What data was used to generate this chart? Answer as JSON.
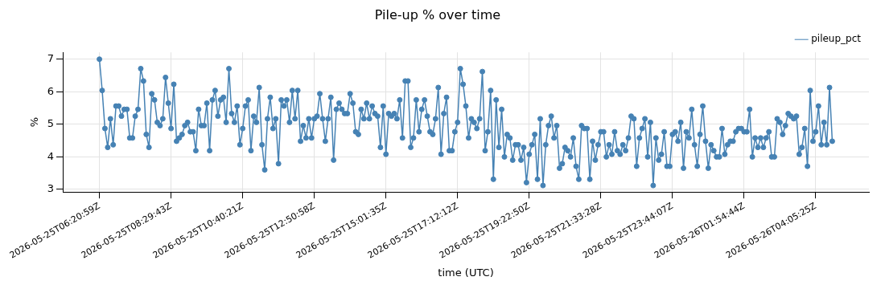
{
  "chart_data": {
    "type": "line",
    "title": "Pile-up % over time",
    "xlabel": "time (UTC)",
    "ylabel": "%",
    "categories": [
      "2026-05-25T06:20:59Z",
      null,
      null,
      null,
      null,
      null,
      null,
      null,
      null,
      null,
      null,
      null,
      null,
      null,
      null,
      null,
      null,
      null,
      null,
      null,
      null,
      null,
      null,
      null,
      null,
      null,
      "2026-05-25T08:29:43Z",
      null,
      null,
      null,
      null,
      null,
      null,
      null,
      null,
      null,
      null,
      null,
      null,
      null,
      null,
      null,
      null,
      null,
      null,
      null,
      null,
      null,
      null,
      null,
      null,
      null,
      "2026-05-25T10:40:21Z",
      null,
      null,
      null,
      null,
      null,
      null,
      null,
      null,
      null,
      null,
      null,
      null,
      null,
      null,
      null,
      null,
      null,
      null,
      null,
      null,
      null,
      null,
      null,
      null,
      null,
      "2026-05-25T12:50:58Z",
      null,
      null,
      null,
      null,
      null,
      null,
      null,
      null,
      null,
      null,
      null,
      null,
      null,
      null,
      null,
      null,
      null,
      null,
      null,
      null,
      null,
      null,
      null,
      null,
      null,
      "2026-05-25T15:01:35Z",
      null,
      null,
      null,
      null,
      null,
      null,
      null,
      null,
      null,
      null,
      null,
      null,
      null,
      null,
      null,
      null,
      null,
      null,
      null,
      null,
      null,
      null,
      null,
      null,
      null,
      "2026-05-25T17:12:12Z",
      null,
      null,
      null,
      null,
      null,
      null,
      null,
      null,
      null,
      null,
      null,
      null,
      null,
      null,
      null,
      null,
      null,
      null,
      null,
      null,
      null,
      null,
      null,
      null,
      null,
      "2026-05-25T19:22:50Z",
      null,
      null,
      null,
      null,
      null,
      null,
      null,
      null,
      null,
      null,
      null,
      null,
      null,
      null,
      null,
      null,
      null,
      null,
      null,
      null,
      null,
      null,
      null,
      null,
      null,
      "2026-05-25T21:33:28Z",
      null,
      null,
      null,
      null,
      null,
      null,
      null,
      null,
      null,
      null,
      null,
      null,
      null,
      null,
      null,
      null,
      null,
      null,
      null,
      null,
      null,
      null,
      null,
      null,
      null,
      "2026-05-25T23:44:07Z",
      null,
      null,
      null,
      null,
      null,
      null,
      null,
      null,
      null,
      null,
      null,
      null,
      null,
      null,
      null,
      null,
      null,
      null,
      null,
      null,
      null,
      null,
      null,
      null,
      null,
      "2026-05-26T01:54:44Z",
      null,
      null,
      null,
      null,
      null,
      null,
      null,
      null,
      null,
      null,
      null,
      null,
      null,
      null,
      null,
      null,
      null,
      null,
      null,
      null,
      null,
      null,
      null,
      null,
      null,
      "2026-05-26T04:05:25Z",
      null,
      null,
      null,
      null,
      null,
      null
    ],
    "series": [
      {
        "name": "pileup_pct",
        "color": "#4682b4",
        "values": [
          7.0,
          6.04,
          4.87,
          4.29,
          5.17,
          4.37,
          5.56,
          5.56,
          5.25,
          5.46,
          5.46,
          4.58,
          4.58,
          5.25,
          5.46,
          6.71,
          6.33,
          4.69,
          4.29,
          5.94,
          5.75,
          5.06,
          4.96,
          5.17,
          6.44,
          5.65,
          4.87,
          6.23,
          4.48,
          4.58,
          4.69,
          4.96,
          5.06,
          4.77,
          4.77,
          4.19,
          5.46,
          4.96,
          4.96,
          5.65,
          4.19,
          5.75,
          6.04,
          5.25,
          5.75,
          5.83,
          5.06,
          6.71,
          5.33,
          5.06,
          5.56,
          4.37,
          4.87,
          5.56,
          5.75,
          4.19,
          5.25,
          5.06,
          6.13,
          4.37,
          3.6,
          5.17,
          5.83,
          4.87,
          5.17,
          3.79,
          5.75,
          5.56,
          5.75,
          5.06,
          6.04,
          5.17,
          6.04,
          4.48,
          4.96,
          4.58,
          5.17,
          4.58,
          5.17,
          5.25,
          5.94,
          5.17,
          4.48,
          5.17,
          5.83,
          3.9,
          5.46,
          5.65,
          5.46,
          5.33,
          5.33,
          5.94,
          5.65,
          4.77,
          4.69,
          5.46,
          5.17,
          5.65,
          5.17,
          5.56,
          5.33,
          5.25,
          4.29,
          5.56,
          4.08,
          5.33,
          5.25,
          5.33,
          5.17,
          5.75,
          4.58,
          6.33,
          6.33,
          4.29,
          4.58,
          5.75,
          4.77,
          5.46,
          5.75,
          5.25,
          4.77,
          4.69,
          5.17,
          6.13,
          4.08,
          5.33,
          5.83,
          4.19,
          4.19,
          4.77,
          5.06,
          6.71,
          6.23,
          5.56,
          4.58,
          5.17,
          5.06,
          4.87,
          5.17,
          6.62,
          4.19,
          4.77,
          6.04,
          3.31,
          5.75,
          4.29,
          5.46,
          4.0,
          4.69,
          4.58,
          3.9,
          4.37,
          4.37,
          3.9,
          4.29,
          3.21,
          4.08,
          4.37,
          4.69,
          3.31,
          5.17,
          3.12,
          4.37,
          4.96,
          5.25,
          4.58,
          4.96,
          3.65,
          3.79,
          4.29,
          4.19,
          4.0,
          4.58,
          3.71,
          3.31,
          4.96,
          4.87,
          4.87,
          3.31,
          4.48,
          3.9,
          4.37,
          4.77,
          4.77,
          4.0,
          4.37,
          4.08,
          4.77,
          4.19,
          4.08,
          4.37,
          4.19,
          4.58,
          5.25,
          5.17,
          3.71,
          4.58,
          4.87,
          5.17,
          4.0,
          5.06,
          3.12,
          4.58,
          3.9,
          4.08,
          4.77,
          3.71,
          3.71,
          4.69,
          4.77,
          4.48,
          5.06,
          3.65,
          4.77,
          4.58,
          5.46,
          4.37,
          3.71,
          4.69,
          5.56,
          4.48,
          3.65,
          4.37,
          4.19,
          4.0,
          4.0,
          4.87,
          4.08,
          4.37,
          4.48,
          4.48,
          4.77,
          4.87,
          4.87,
          4.77,
          4.77,
          5.46,
          4.0,
          4.58,
          4.29,
          4.58,
          4.29,
          4.58,
          4.77,
          4.0,
          4.0,
          5.17,
          5.06,
          4.69,
          4.96,
          5.33,
          5.25,
          5.17,
          5.25,
          4.08,
          4.29,
          4.87,
          3.71,
          6.04,
          4.48,
          4.77,
          5.56,
          4.37,
          5.06,
          4.37,
          6.13,
          4.48
        ]
      }
    ],
    "ylim": [
      2.92,
      7.21
    ],
    "yticks": [
      3,
      4,
      5,
      6,
      7
    ],
    "grid": true,
    "legend": "top right",
    "marker": "circle",
    "line_style": "solid"
  }
}
